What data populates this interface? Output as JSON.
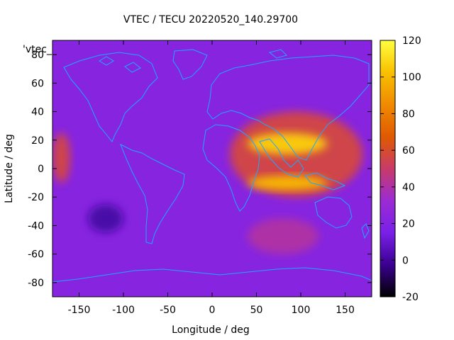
{
  "chart_data": {
    "type": "heatmap",
    "title": "VTEC / TECU 20220520_140.29700",
    "xlabel": "Longitude / deg",
    "ylabel": "Latitude / deg",
    "key_label": "'vtec_",
    "xlim": [
      -180,
      180
    ],
    "ylim": [
      -90,
      90
    ],
    "x_ticks": [
      -150,
      -100,
      -50,
      0,
      50,
      100,
      150
    ],
    "y_ticks": [
      -80,
      -60,
      -40,
      -20,
      0,
      20,
      40,
      60,
      80
    ],
    "colorbar": {
      "range": [
        -20,
        120
      ],
      "ticks": [
        -20,
        0,
        20,
        40,
        60,
        80,
        100,
        120
      ],
      "palette": [
        "#000000",
        "#3a0090",
        "#7a20e8",
        "#9b2bd4",
        "#c83b68",
        "#e05a00",
        "#f08a00",
        "#f8c000",
        "#ffff40"
      ]
    },
    "features": [
      {
        "name": "equatorial anomaly peak",
        "lon": [
          40,
          130
        ],
        "lat": [
          10,
          25
        ],
        "vtec": 105
      },
      {
        "name": "southern crest",
        "lon": [
          40,
          130
        ],
        "lat": [
          -15,
          -5
        ],
        "vtec": 100
      },
      {
        "name": "mid-latitude band",
        "lon": [
          20,
          170
        ],
        "lat": [
          -20,
          40
        ],
        "vtec": 55
      },
      {
        "name": "Pacific patch",
        "lon": [
          -180,
          -160
        ],
        "lat": [
          -10,
          25
        ],
        "vtec": 55
      },
      {
        "name": "south Indian Ocean patch",
        "lon": [
          40,
          120
        ],
        "lat": [
          -60,
          -35
        ],
        "vtec": 40
      },
      {
        "name": "south Pacific minimum",
        "lon": [
          -140,
          -100
        ],
        "lat": [
          -45,
          -25
        ],
        "vtec": 2
      }
    ],
    "background_vtec": 22,
    "grid": false,
    "legend_position": "top-left"
  }
}
